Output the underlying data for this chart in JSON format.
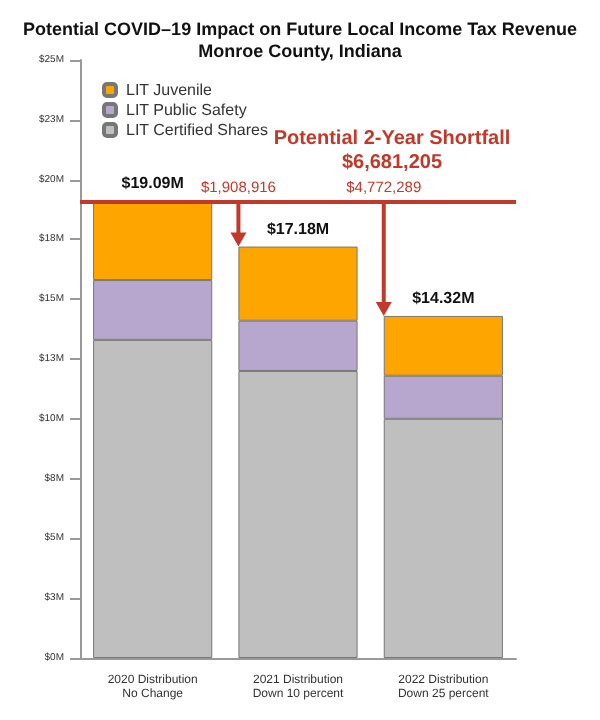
{
  "chart_data": {
    "type": "bar",
    "stacked": true,
    "title": "Potential COVID–19 Impact on Future Local Income Tax Revenue\nMonroe County, Indiana",
    "categories": [
      "2020 Distribution\nNo Change",
      "2021 Distribution\nDown 10 percent",
      "2022 Distribution\nDown 25 percent"
    ],
    "series": [
      {
        "name": "LIT Certified Shares",
        "color": "#bfbfbf",
        "values": [
          13.3,
          12.0,
          10.0
        ]
      },
      {
        "name": "LIT Public Safety",
        "color": "#b7a7cf",
        "values": [
          2.5,
          2.1,
          1.8
        ]
      },
      {
        "name": "LIT Juvenile",
        "color": "#ffa500",
        "values": [
          3.3,
          3.1,
          2.5
        ]
      }
    ],
    "totals": [
      "$19.09M",
      "$17.18M",
      "$14.32M"
    ],
    "ylim": [
      0,
      25
    ],
    "yticks": [
      {
        "value": 0,
        "label": "$0M"
      },
      {
        "value": 2.5,
        "label": "$3M"
      },
      {
        "value": 5,
        "label": "$5M"
      },
      {
        "value": 7.5,
        "label": "$8M"
      },
      {
        "value": 10,
        "label": "$10M"
      },
      {
        "value": 12.5,
        "label": "$13M"
      },
      {
        "value": 15,
        "label": "$15M"
      },
      {
        "value": 17.5,
        "label": "$18M"
      },
      {
        "value": 20,
        "label": "$20M"
      },
      {
        "value": 22.5,
        "label": "$23M"
      },
      {
        "value": 25,
        "label": "$25M"
      }
    ],
    "ref_lines": [
      {
        "axis": "y",
        "value": 19.09,
        "color": "#c0392b"
      }
    ],
    "annotations": [
      "Potential 2-Year Shortfall",
      "$6,681,205",
      {
        "text": "$1,908,916",
        "x": "2021 Distribution\nDown 10 percent",
        "y": 19.09
      },
      {
        "text": "$4,772,289",
        "x": "2022 Distribution\nDown 25 percent",
        "y": 19.09
      }
    ],
    "legend": "top left",
    "grid": false
  }
}
